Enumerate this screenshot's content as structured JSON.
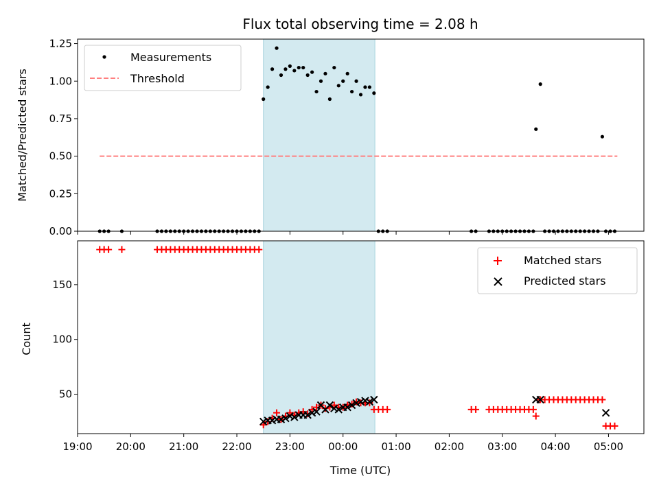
{
  "chart_data": [
    {
      "type": "scatter",
      "title": "Flux total observing time = 2.08 h",
      "xlabel": "",
      "ylabel": "Matched/Predicted stars",
      "xlim": [
        "19:00",
        "05:40"
      ],
      "ylim": [
        0,
        1.28
      ],
      "yticks": [
        "0.00",
        "0.25",
        "0.50",
        "0.75",
        "1.00",
        "1.25"
      ],
      "legend": "top-left",
      "shaded_interval": [
        "22:30",
        "00:36"
      ],
      "shaded_color": "#d3eaf0",
      "series": [
        {
          "name": "Measurements",
          "marker": "dot",
          "color": "#000000",
          "x": [
            "19:25",
            "19:30",
            "19:35",
            "19:50",
            "20:30",
            "20:35",
            "20:40",
            "20:45",
            "20:50",
            "20:55",
            "21:00",
            "21:05",
            "21:10",
            "21:15",
            "21:20",
            "21:25",
            "21:30",
            "21:35",
            "21:40",
            "21:45",
            "21:50",
            "21:55",
            "22:00",
            "22:05",
            "22:10",
            "22:15",
            "22:20",
            "22:25",
            "22:30",
            "22:35",
            "22:40",
            "22:45",
            "22:50",
            "22:55",
            "23:00",
            "23:05",
            "23:10",
            "23:15",
            "23:20",
            "23:25",
            "23:30",
            "23:35",
            "23:40",
            "23:45",
            "23:50",
            "23:55",
            "00:00",
            "00:05",
            "00:10",
            "00:15",
            "00:20",
            "00:25",
            "00:30",
            "00:35",
            "00:40",
            "00:45",
            "00:50",
            "02:25",
            "02:30",
            "02:45",
            "02:50",
            "02:55",
            "03:00",
            "03:05",
            "03:10",
            "03:15",
            "03:20",
            "03:25",
            "03:30",
            "03:35",
            "03:38",
            "03:43",
            "03:48",
            "03:53",
            "03:58",
            "04:03",
            "04:08",
            "04:13",
            "04:18",
            "04:23",
            "04:28",
            "04:33",
            "04:38",
            "04:43",
            "04:48",
            "04:53",
            "04:57",
            "05:02",
            "05:07"
          ],
          "y": [
            0,
            0,
            0,
            0,
            0,
            0,
            0,
            0,
            0,
            0,
            0,
            0,
            0,
            0,
            0,
            0,
            0,
            0,
            0,
            0,
            0,
            0,
            0,
            0,
            0,
            0,
            0,
            0,
            0.88,
            0.96,
            1.08,
            1.22,
            1.04,
            1.08,
            1.1,
            1.07,
            1.09,
            1.09,
            1.04,
            1.06,
            0.93,
            1.0,
            1.05,
            0.88,
            1.09,
            0.97,
            1.0,
            1.05,
            0.93,
            1.0,
            0.91,
            0.96,
            0.96,
            0.92,
            0,
            0,
            0,
            0,
            0,
            0,
            0,
            0,
            0,
            0,
            0,
            0,
            0,
            0,
            0,
            0,
            0.68,
            0.98,
            0,
            0,
            0,
            0,
            0,
            0,
            0,
            0,
            0,
            0,
            0,
            0,
            0,
            0.63,
            0,
            0,
            0
          ]
        },
        {
          "name": "Threshold",
          "marker": "dashed-line",
          "color": "#ff7f7f",
          "x": [
            "19:25",
            "05:10"
          ],
          "y": [
            0.5,
            0.5
          ]
        }
      ]
    },
    {
      "type": "scatter",
      "title": "",
      "xlabel": "Time (UTC)",
      "ylabel": "Count",
      "xlim": [
        "19:00",
        "05:40"
      ],
      "ylim": [
        14,
        190
      ],
      "xticks": [
        "19:00",
        "20:00",
        "21:00",
        "22:00",
        "23:00",
        "00:00",
        "01:00",
        "02:00",
        "03:00",
        "04:00",
        "05:00"
      ],
      "yticks": [
        "50",
        "100",
        "150"
      ],
      "legend": "top-right",
      "shaded_interval": [
        "22:30",
        "00:36"
      ],
      "shaded_color": "#d3eaf0",
      "series": [
        {
          "name": "Matched stars",
          "marker": "plus",
          "color": "#ff0000",
          "x": [
            "19:25",
            "19:30",
            "19:35",
            "19:50",
            "20:30",
            "20:35",
            "20:40",
            "20:45",
            "20:50",
            "20:55",
            "21:00",
            "21:05",
            "21:10",
            "21:15",
            "21:20",
            "21:25",
            "21:30",
            "21:35",
            "21:40",
            "21:45",
            "21:50",
            "21:55",
            "22:00",
            "22:05",
            "22:10",
            "22:15",
            "22:20",
            "22:25",
            "22:30",
            "22:35",
            "22:40",
            "22:45",
            "22:50",
            "22:55",
            "23:00",
            "23:05",
            "23:10",
            "23:15",
            "23:20",
            "23:25",
            "23:30",
            "23:35",
            "23:40",
            "23:45",
            "23:50",
            "23:55",
            "00:00",
            "00:05",
            "00:10",
            "00:15",
            "00:20",
            "00:25",
            "00:30",
            "00:35",
            "00:40",
            "00:45",
            "00:50",
            "02:25",
            "02:30",
            "02:45",
            "02:50",
            "02:55",
            "03:00",
            "03:05",
            "03:10",
            "03:15",
            "03:20",
            "03:25",
            "03:30",
            "03:35",
            "03:38",
            "03:43",
            "03:48",
            "03:53",
            "03:58",
            "04:03",
            "04:08",
            "04:13",
            "04:18",
            "04:23",
            "04:28",
            "04:33",
            "04:38",
            "04:43",
            "04:48",
            "04:53",
            "04:57",
            "05:02",
            "05:07"
          ],
          "y": [
            182,
            182,
            182,
            182,
            182,
            182,
            182,
            182,
            182,
            182,
            182,
            182,
            182,
            182,
            182,
            182,
            182,
            182,
            182,
            182,
            182,
            182,
            182,
            182,
            182,
            182,
            182,
            182,
            22,
            25,
            28,
            33,
            27,
            30,
            33,
            31,
            33,
            34,
            32,
            36,
            38,
            40,
            37,
            38,
            40,
            38,
            38,
            40,
            41,
            43,
            42,
            42,
            42,
            36,
            36,
            36,
            36,
            36,
            36,
            36,
            36,
            36,
            36,
            36,
            36,
            36,
            36,
            36,
            36,
            36,
            30,
            45,
            45,
            45,
            45,
            45,
            45,
            45,
            45,
            45,
            45,
            45,
            45,
            45,
            45,
            45,
            21,
            21,
            21
          ]
        },
        {
          "name": "Predicted stars",
          "marker": "x",
          "color": "#000000",
          "x": [
            "22:30",
            "22:35",
            "22:40",
            "22:45",
            "22:50",
            "22:55",
            "23:00",
            "23:05",
            "23:10",
            "23:15",
            "23:20",
            "23:25",
            "23:30",
            "23:35",
            "23:40",
            "23:45",
            "23:50",
            "23:55",
            "00:00",
            "00:05",
            "00:10",
            "00:15",
            "00:20",
            "00:25",
            "00:30",
            "00:35",
            "03:38",
            "03:43",
            "04:57"
          ],
          "y": [
            25,
            26,
            26,
            27,
            27,
            28,
            30,
            29,
            31,
            31,
            31,
            33,
            34,
            40,
            36,
            40,
            37,
            36,
            38,
            38,
            40,
            42,
            43,
            44,
            43,
            45,
            45,
            45,
            33
          ]
        }
      ]
    }
  ]
}
